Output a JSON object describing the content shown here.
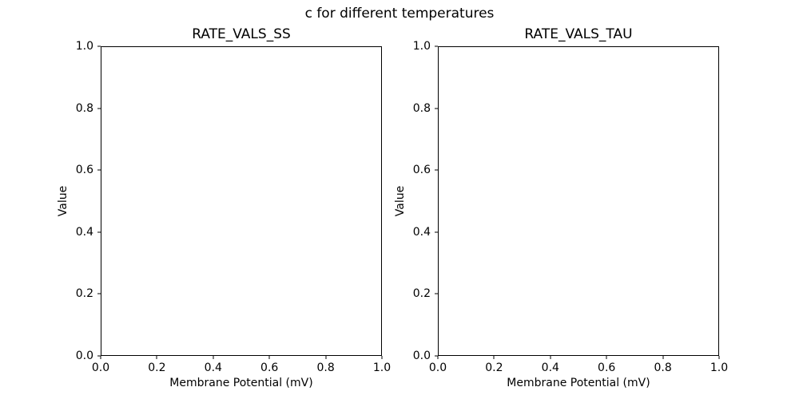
{
  "figure": {
    "suptitle": "c for different temperatures"
  },
  "chart_data": [
    {
      "type": "line",
      "title": "RATE_VALS_SS",
      "xlabel": "Membrane Potential (mV)",
      "ylabel": "Value",
      "xlim": [
        0.0,
        1.0
      ],
      "ylim": [
        0.0,
        1.0
      ],
      "x_ticks": [
        "0.0",
        "0.2",
        "0.4",
        "0.6",
        "0.8",
        "1.0"
      ],
      "y_ticks": [
        "0.0",
        "0.2",
        "0.4",
        "0.6",
        "0.8",
        "1.0"
      ],
      "series": [],
      "grid": false,
      "legend": false
    },
    {
      "type": "line",
      "title": "RATE_VALS_TAU",
      "xlabel": "Membrane Potential (mV)",
      "ylabel": "Value",
      "xlim": [
        0.0,
        1.0
      ],
      "ylim": [
        0.0,
        1.0
      ],
      "x_ticks": [
        "0.0",
        "0.2",
        "0.4",
        "0.6",
        "0.8",
        "1.0"
      ],
      "y_ticks": [
        "0.0",
        "0.2",
        "0.4",
        "0.6",
        "0.8",
        "1.0"
      ],
      "series": [],
      "grid": false,
      "legend": false
    }
  ]
}
